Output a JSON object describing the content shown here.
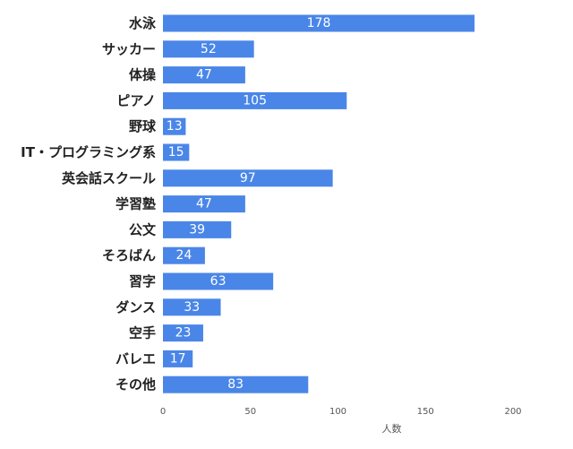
{
  "chart_data": {
    "type": "bar",
    "orientation": "horizontal",
    "categories": [
      "水泳",
      "サッカー",
      "体操",
      "ピアノ",
      "野球",
      "IT・プログラミング系",
      "英会話スクール",
      "学習塾",
      "公文",
      "そろばん",
      "習字",
      "ダンス",
      "空手",
      "バレエ",
      "その他"
    ],
    "values": [
      178,
      52,
      47,
      105,
      13,
      15,
      97,
      47,
      39,
      24,
      63,
      33,
      23,
      17,
      83
    ],
    "data_labels": [
      "178",
      "52",
      "47",
      "105",
      "13",
      "15",
      "97",
      "47",
      "39",
      "24",
      "63",
      "33",
      "23",
      "17",
      "83"
    ],
    "xlim": [
      0,
      200
    ],
    "xticks": [
      "0",
      "50",
      "100",
      "150",
      "200"
    ],
    "xlabel": "人数",
    "ylabel": "",
    "title": "",
    "grid": false,
    "legend": "none",
    "bar_color": "#4a86e8"
  }
}
